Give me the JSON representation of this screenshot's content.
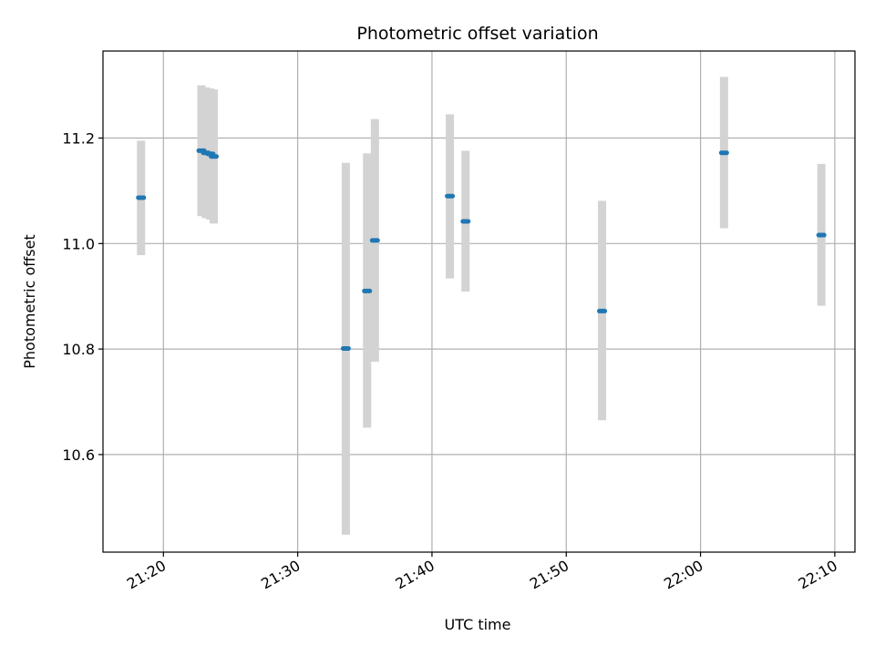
{
  "chart_data": {
    "type": "scatter",
    "title": "Photometric offset variation",
    "xlabel": "UTC time",
    "ylabel": "Photometric offset",
    "xlim": [
      "21:15:30",
      "22:11:30"
    ],
    "ylim": [
      10.415,
      11.365
    ],
    "x_ticks": [
      "21:20",
      "21:30",
      "21:40",
      "21:50",
      "22:00",
      "22:10"
    ],
    "y_ticks": [
      "10.6",
      "10.8",
      "11.0",
      "11.2"
    ],
    "grid": true,
    "colors": {
      "marker": "#1f77b4",
      "errorbar": "#d3d3d3",
      "grid": "#b0b0b0"
    },
    "points": [
      {
        "x": "21:18:20",
        "y": 11.087,
        "err_low": 10.978,
        "err_high": 11.195
      },
      {
        "x": "21:22:50",
        "y": 11.176,
        "err_low": 11.052,
        "err_high": 11.3
      },
      {
        "x": "21:23:10",
        "y": 11.172,
        "err_low": 11.048,
        "err_high": 11.296
      },
      {
        "x": "21:23:30",
        "y": 11.17,
        "err_low": 11.045,
        "err_high": 11.294
      },
      {
        "x": "21:23:45",
        "y": 11.165,
        "err_low": 11.038,
        "err_high": 11.292
      },
      {
        "x": "21:33:35",
        "y": 10.801,
        "err_low": 10.448,
        "err_high": 11.153
      },
      {
        "x": "21:35:10",
        "y": 10.91,
        "err_low": 10.651,
        "err_high": 11.171
      },
      {
        "x": "21:35:45",
        "y": 11.006,
        "err_low": 10.776,
        "err_high": 11.236
      },
      {
        "x": "21:41:20",
        "y": 11.09,
        "err_low": 10.934,
        "err_high": 11.245
      },
      {
        "x": "21:42:30",
        "y": 11.042,
        "err_low": 10.909,
        "err_high": 11.176
      },
      {
        "x": "21:52:40",
        "y": 10.872,
        "err_low": 10.665,
        "err_high": 11.081
      },
      {
        "x": "22:01:45",
        "y": 11.172,
        "err_low": 11.029,
        "err_high": 11.316
      },
      {
        "x": "22:09:00",
        "y": 11.016,
        "err_low": 10.882,
        "err_high": 11.151
      }
    ]
  }
}
